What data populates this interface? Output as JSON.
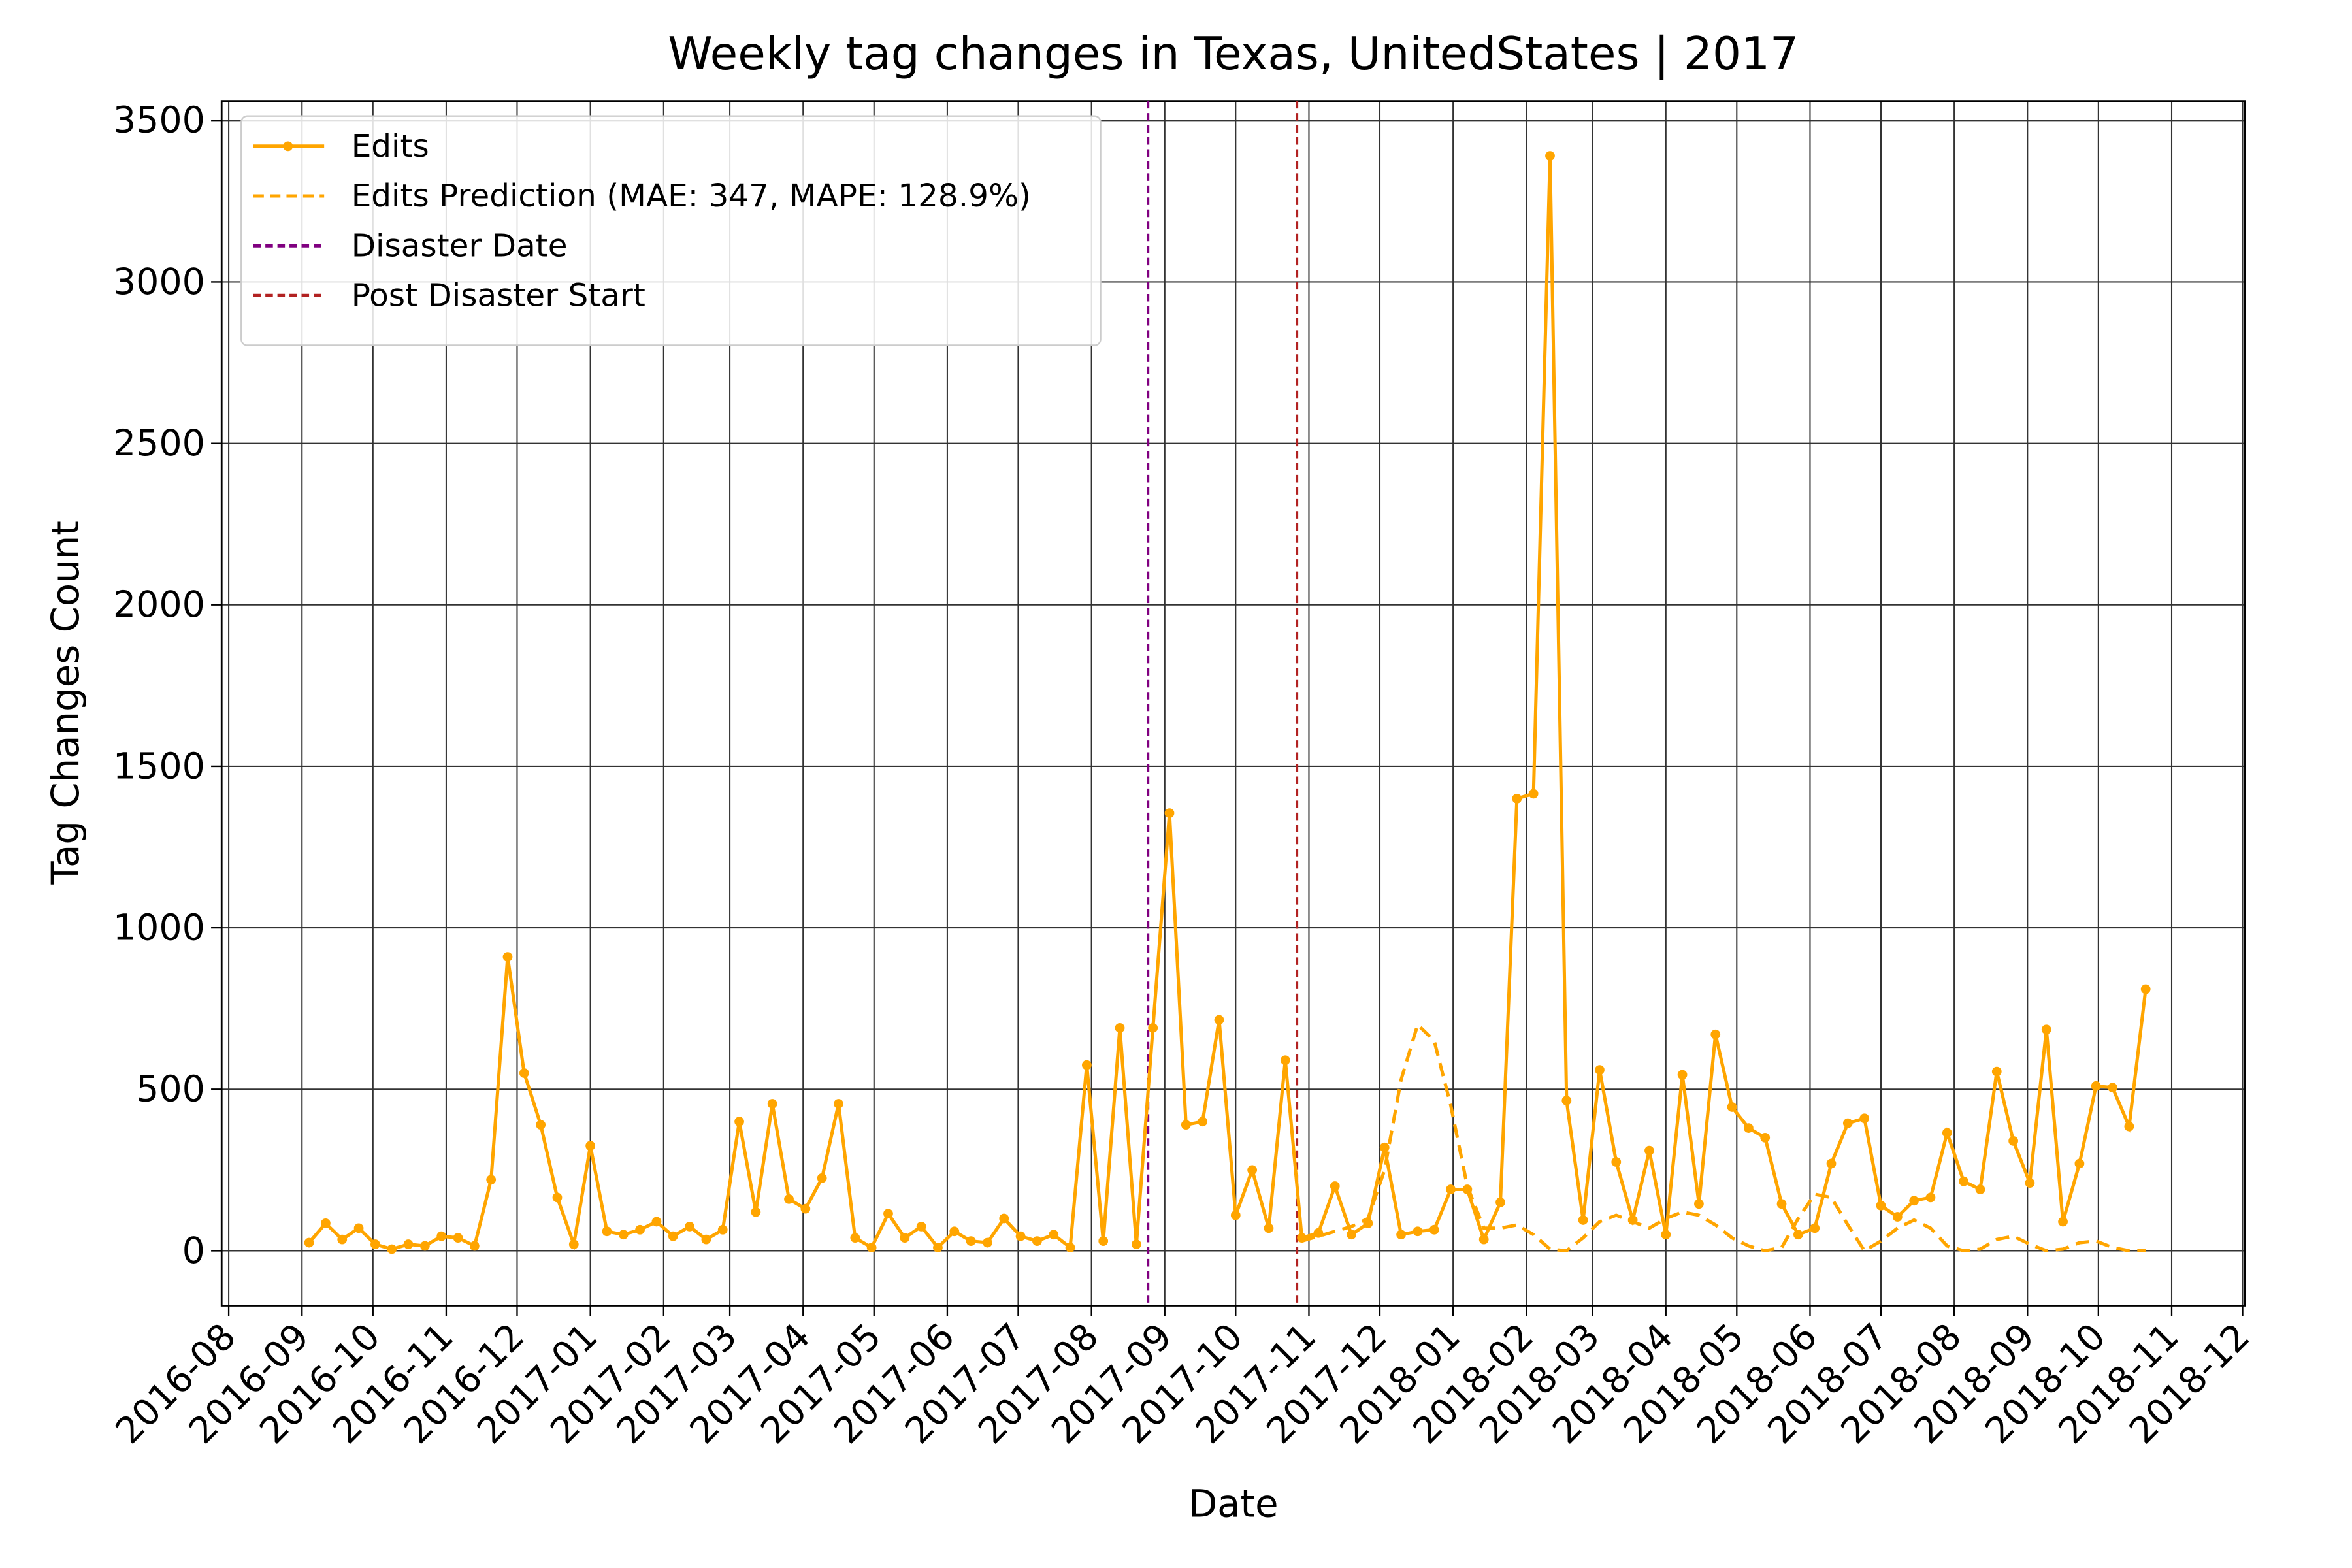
{
  "chart_data": {
    "type": "line",
    "title": "Weekly tag changes in Texas, UnitedStates | 2017",
    "xlabel": "Date",
    "ylabel": "Tag Changes Count",
    "x": [
      "2016-09-04",
      "2016-09-11",
      "2016-09-18",
      "2016-09-25",
      "2016-10-02",
      "2016-10-09",
      "2016-10-16",
      "2016-10-23",
      "2016-10-30",
      "2016-11-06",
      "2016-11-13",
      "2016-11-20",
      "2016-11-27",
      "2016-12-04",
      "2016-12-11",
      "2016-12-18",
      "2016-12-25",
      "2017-01-01",
      "2017-01-08",
      "2017-01-15",
      "2017-01-22",
      "2017-01-29",
      "2017-02-05",
      "2017-02-12",
      "2017-02-19",
      "2017-02-26",
      "2017-03-05",
      "2017-03-12",
      "2017-03-19",
      "2017-03-26",
      "2017-04-02",
      "2017-04-09",
      "2017-04-16",
      "2017-04-23",
      "2017-04-30",
      "2017-05-07",
      "2017-05-14",
      "2017-05-21",
      "2017-05-28",
      "2017-06-04",
      "2017-06-11",
      "2017-06-18",
      "2017-06-25",
      "2017-07-02",
      "2017-07-09",
      "2017-07-16",
      "2017-07-23",
      "2017-07-30",
      "2017-08-06",
      "2017-08-13",
      "2017-08-20",
      "2017-08-27",
      "2017-09-03",
      "2017-09-10",
      "2017-09-17",
      "2017-09-24",
      "2017-10-01",
      "2017-10-08",
      "2017-10-15",
      "2017-10-22",
      "2017-10-29",
      "2017-11-05",
      "2017-11-12",
      "2017-11-19",
      "2017-11-26",
      "2017-12-03",
      "2017-12-10",
      "2017-12-17",
      "2017-12-24",
      "2017-12-31",
      "2018-01-07",
      "2018-01-14",
      "2018-01-21",
      "2018-01-28",
      "2018-02-04",
      "2018-02-11",
      "2018-02-18",
      "2018-02-25",
      "2018-03-04",
      "2018-03-11",
      "2018-03-18",
      "2018-03-25",
      "2018-04-01",
      "2018-04-08",
      "2018-04-15",
      "2018-04-22",
      "2018-04-29",
      "2018-05-06",
      "2018-05-13",
      "2018-05-20",
      "2018-05-27",
      "2018-06-03",
      "2018-06-10",
      "2018-06-17",
      "2018-06-24",
      "2018-07-01",
      "2018-07-08",
      "2018-07-15",
      "2018-07-22",
      "2018-07-29",
      "2018-08-05",
      "2018-08-12",
      "2018-08-19",
      "2018-08-26",
      "2018-09-02",
      "2018-09-09",
      "2018-09-16",
      "2018-09-23",
      "2018-09-30",
      "2018-10-07",
      "2018-10-14",
      "2018-10-21"
    ],
    "series": [
      {
        "name": "Edits",
        "color": "#ffa500",
        "style": "solid",
        "marker": true,
        "values": [
          25,
          85,
          35,
          70,
          20,
          5,
          20,
          15,
          45,
          40,
          15,
          220,
          910,
          550,
          390,
          165,
          20,
          325,
          60,
          50,
          65,
          90,
          45,
          75,
          35,
          65,
          400,
          120,
          455,
          160,
          130,
          225,
          455,
          40,
          10,
          115,
          40,
          75,
          10,
          60,
          30,
          25,
          100,
          45,
          30,
          50,
          10,
          575,
          30,
          690,
          20,
          690,
          1355,
          390,
          400,
          715,
          110,
          250,
          70,
          590,
          40,
          55,
          200,
          50,
          85,
          320,
          50,
          60,
          65,
          190,
          190,
          35,
          150,
          1400,
          1415,
          3390,
          465,
          95,
          560,
          275,
          95,
          310,
          50,
          545,
          145,
          670,
          445,
          380,
          350,
          145,
          50,
          70,
          270,
          395,
          410,
          140,
          105,
          155,
          165,
          365,
          215,
          190,
          555,
          340,
          210,
          685,
          90,
          270,
          510,
          505,
          385,
          810
        ]
      },
      {
        "name": "Edits Prediction (MAE: 347, MAPE: 128.9%)",
        "color": "#ffa500",
        "style": "dashed",
        "marker": false,
        "values": [
          null,
          null,
          null,
          null,
          null,
          null,
          null,
          null,
          null,
          null,
          null,
          null,
          null,
          null,
          null,
          null,
          null,
          null,
          null,
          null,
          null,
          null,
          null,
          null,
          null,
          null,
          null,
          null,
          null,
          null,
          null,
          null,
          null,
          null,
          null,
          null,
          null,
          null,
          null,
          null,
          null,
          null,
          null,
          null,
          null,
          null,
          null,
          null,
          null,
          null,
          null,
          null,
          null,
          null,
          null,
          null,
          null,
          null,
          null,
          null,
          30,
          45,
          60,
          75,
          100,
          250,
          530,
          700,
          650,
          450,
          200,
          70,
          70,
          80,
          50,
          5,
          0,
          40,
          90,
          110,
          90,
          70,
          100,
          120,
          110,
          80,
          40,
          15,
          0,
          10,
          100,
          175,
          165,
          80,
          0,
          30,
          70,
          95,
          70,
          15,
          0,
          5,
          35,
          45,
          20,
          0,
          5,
          25,
          30,
          10,
          0,
          0
        ]
      }
    ],
    "vlines": [
      {
        "name": "Disaster Date",
        "x": "2017-08-25",
        "color": "#800080"
      },
      {
        "name": "Post Disaster Start",
        "x": "2017-10-27",
        "color": "#b22222"
      }
    ],
    "xlim": [
      "2016-07-29",
      "2018-12-02"
    ],
    "xticks": [
      "2016-08",
      "2016-09",
      "2016-10",
      "2016-11",
      "2016-12",
      "2017-01",
      "2017-02",
      "2017-03",
      "2017-04",
      "2017-05",
      "2017-06",
      "2017-07",
      "2017-08",
      "2017-09",
      "2017-10",
      "2017-11",
      "2017-12",
      "2018-01",
      "2018-02",
      "2018-03",
      "2018-04",
      "2018-05",
      "2018-06",
      "2018-07",
      "2018-08",
      "2018-09",
      "2018-10",
      "2018-11",
      "2018-12"
    ],
    "ylim": [
      -170,
      3560
    ],
    "yticks": [
      0,
      500,
      1000,
      1500,
      2000,
      2500,
      3000,
      3500
    ],
    "grid": true,
    "legend": "upper left"
  }
}
